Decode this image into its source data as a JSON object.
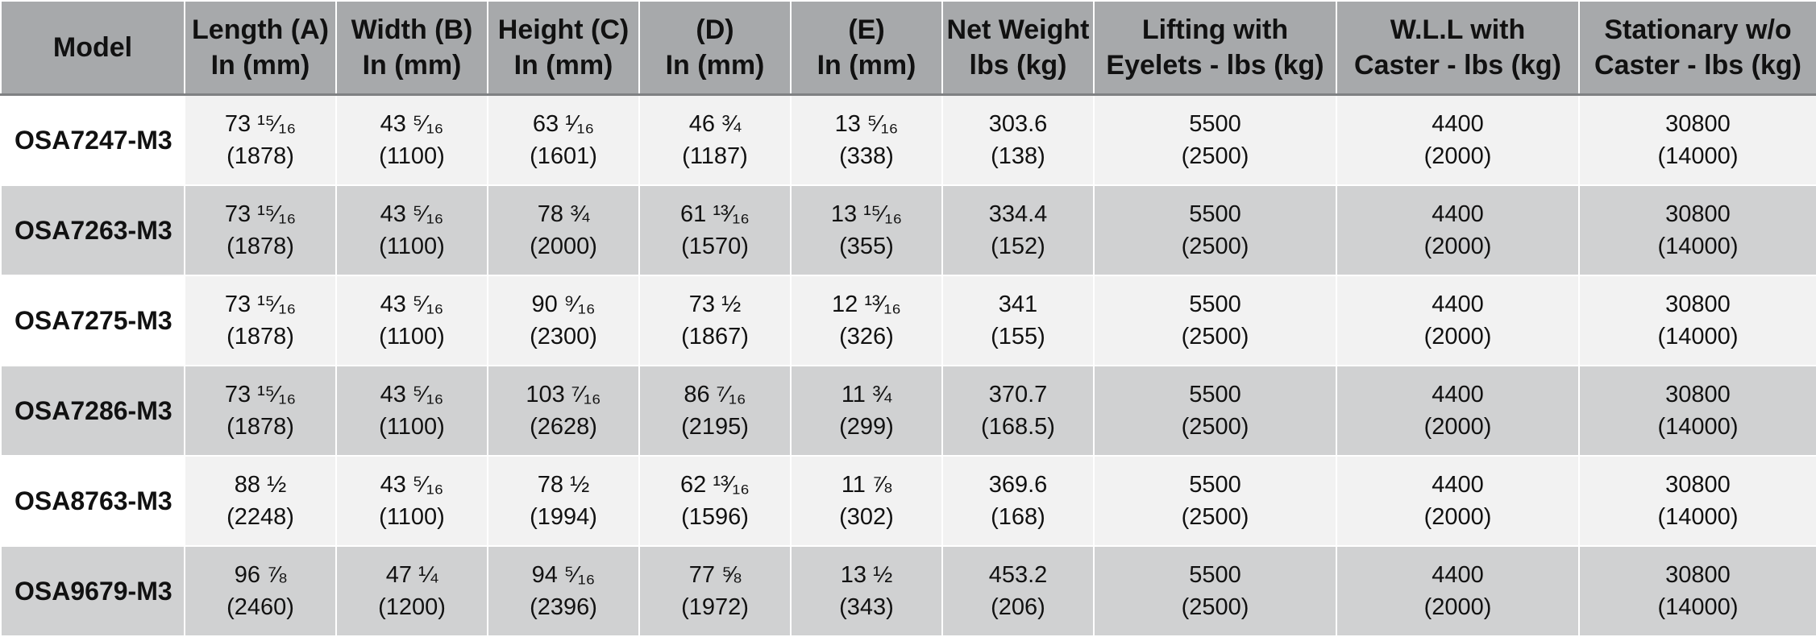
{
  "headers": [
    [
      "Model",
      ""
    ],
    [
      "Length (A)",
      "In (mm)"
    ],
    [
      "Width (B)",
      "In (mm)"
    ],
    [
      "Height (C)",
      "In (mm)"
    ],
    [
      "(D)",
      "In (mm)"
    ],
    [
      "(E)",
      "In (mm)"
    ],
    [
      "Net Weight",
      "lbs (kg)"
    ],
    [
      "Lifting with",
      "Eyelets - lbs (kg)"
    ],
    [
      "W.L.L with",
      "Caster - lbs (kg)"
    ],
    [
      "Stationary w/o",
      "Caster - lbs (kg)"
    ]
  ],
  "rows": [
    {
      "model": "OSA7247-M3",
      "cells": [
        [
          "73 ¹⁵⁄₁₆",
          "(1878)"
        ],
        [
          "43 ⁵⁄₁₆",
          "(1100)"
        ],
        [
          "63 ¹⁄₁₆",
          "(1601)"
        ],
        [
          "46 ¾",
          "(1187)"
        ],
        [
          "13 ⁵⁄₁₆",
          "(338)"
        ],
        [
          "303.6",
          "(138)"
        ],
        [
          "5500",
          "(2500)"
        ],
        [
          "4400",
          "(2000)"
        ],
        [
          "30800",
          "(14000)"
        ]
      ]
    },
    {
      "model": "OSA7263-M3",
      "cells": [
        [
          "73 ¹⁵⁄₁₆",
          "(1878)"
        ],
        [
          "43 ⁵⁄₁₆",
          "(1100)"
        ],
        [
          "78 ¾",
          "(2000)"
        ],
        [
          "61 ¹³⁄₁₆",
          "(1570)"
        ],
        [
          "13 ¹⁵⁄₁₆",
          "(355)"
        ],
        [
          "334.4",
          "(152)"
        ],
        [
          "5500",
          "(2500)"
        ],
        [
          "4400",
          "(2000)"
        ],
        [
          "30800",
          "(14000)"
        ]
      ]
    },
    {
      "model": "OSA7275-M3",
      "cells": [
        [
          "73 ¹⁵⁄₁₆",
          "(1878)"
        ],
        [
          "43 ⁵⁄₁₆",
          "(1100)"
        ],
        [
          "90 ⁹⁄₁₆",
          "(2300)"
        ],
        [
          "73 ½",
          "(1867)"
        ],
        [
          "12 ¹³⁄₁₆",
          "(326)"
        ],
        [
          "341",
          "(155)"
        ],
        [
          "5500",
          "(2500)"
        ],
        [
          "4400",
          "(2000)"
        ],
        [
          "30800",
          "(14000)"
        ]
      ]
    },
    {
      "model": "OSA7286-M3",
      "cells": [
        [
          "73 ¹⁵⁄₁₆",
          "(1878)"
        ],
        [
          "43 ⁵⁄₁₆",
          "(1100)"
        ],
        [
          "103 ⁷⁄₁₆",
          "(2628)"
        ],
        [
          "86 ⁷⁄₁₆",
          "(2195)"
        ],
        [
          "11 ¾",
          "(299)"
        ],
        [
          "370.7",
          "(168.5)"
        ],
        [
          "5500",
          "(2500)"
        ],
        [
          "4400",
          "(2000)"
        ],
        [
          "30800",
          "(14000)"
        ]
      ]
    },
    {
      "model": "OSA8763-M3",
      "cells": [
        [
          "88 ½",
          "(2248)"
        ],
        [
          "43 ⁵⁄₁₆",
          "(1100)"
        ],
        [
          "78 ½",
          "(1994)"
        ],
        [
          "62 ¹³⁄₁₆",
          "(1596)"
        ],
        [
          "11 ⅞",
          "(302)"
        ],
        [
          "369.6",
          "(168)"
        ],
        [
          "5500",
          "(2500)"
        ],
        [
          "4400",
          "(2000)"
        ],
        [
          "30800",
          "(14000)"
        ]
      ]
    },
    {
      "model": "OSA9679-M3",
      "cells": [
        [
          "96 ⅞",
          "(2460)"
        ],
        [
          "47 ¼",
          "(1200)"
        ],
        [
          "94 ⁵⁄₁₆",
          "(2396)"
        ],
        [
          "77 ⅝",
          "(1972)"
        ],
        [
          "13 ½",
          "(343)"
        ],
        [
          "453.2",
          "(206)"
        ],
        [
          "5500",
          "(2500)"
        ],
        [
          "4400",
          "(2000)"
        ],
        [
          "30800",
          "(14000)"
        ]
      ]
    }
  ]
}
